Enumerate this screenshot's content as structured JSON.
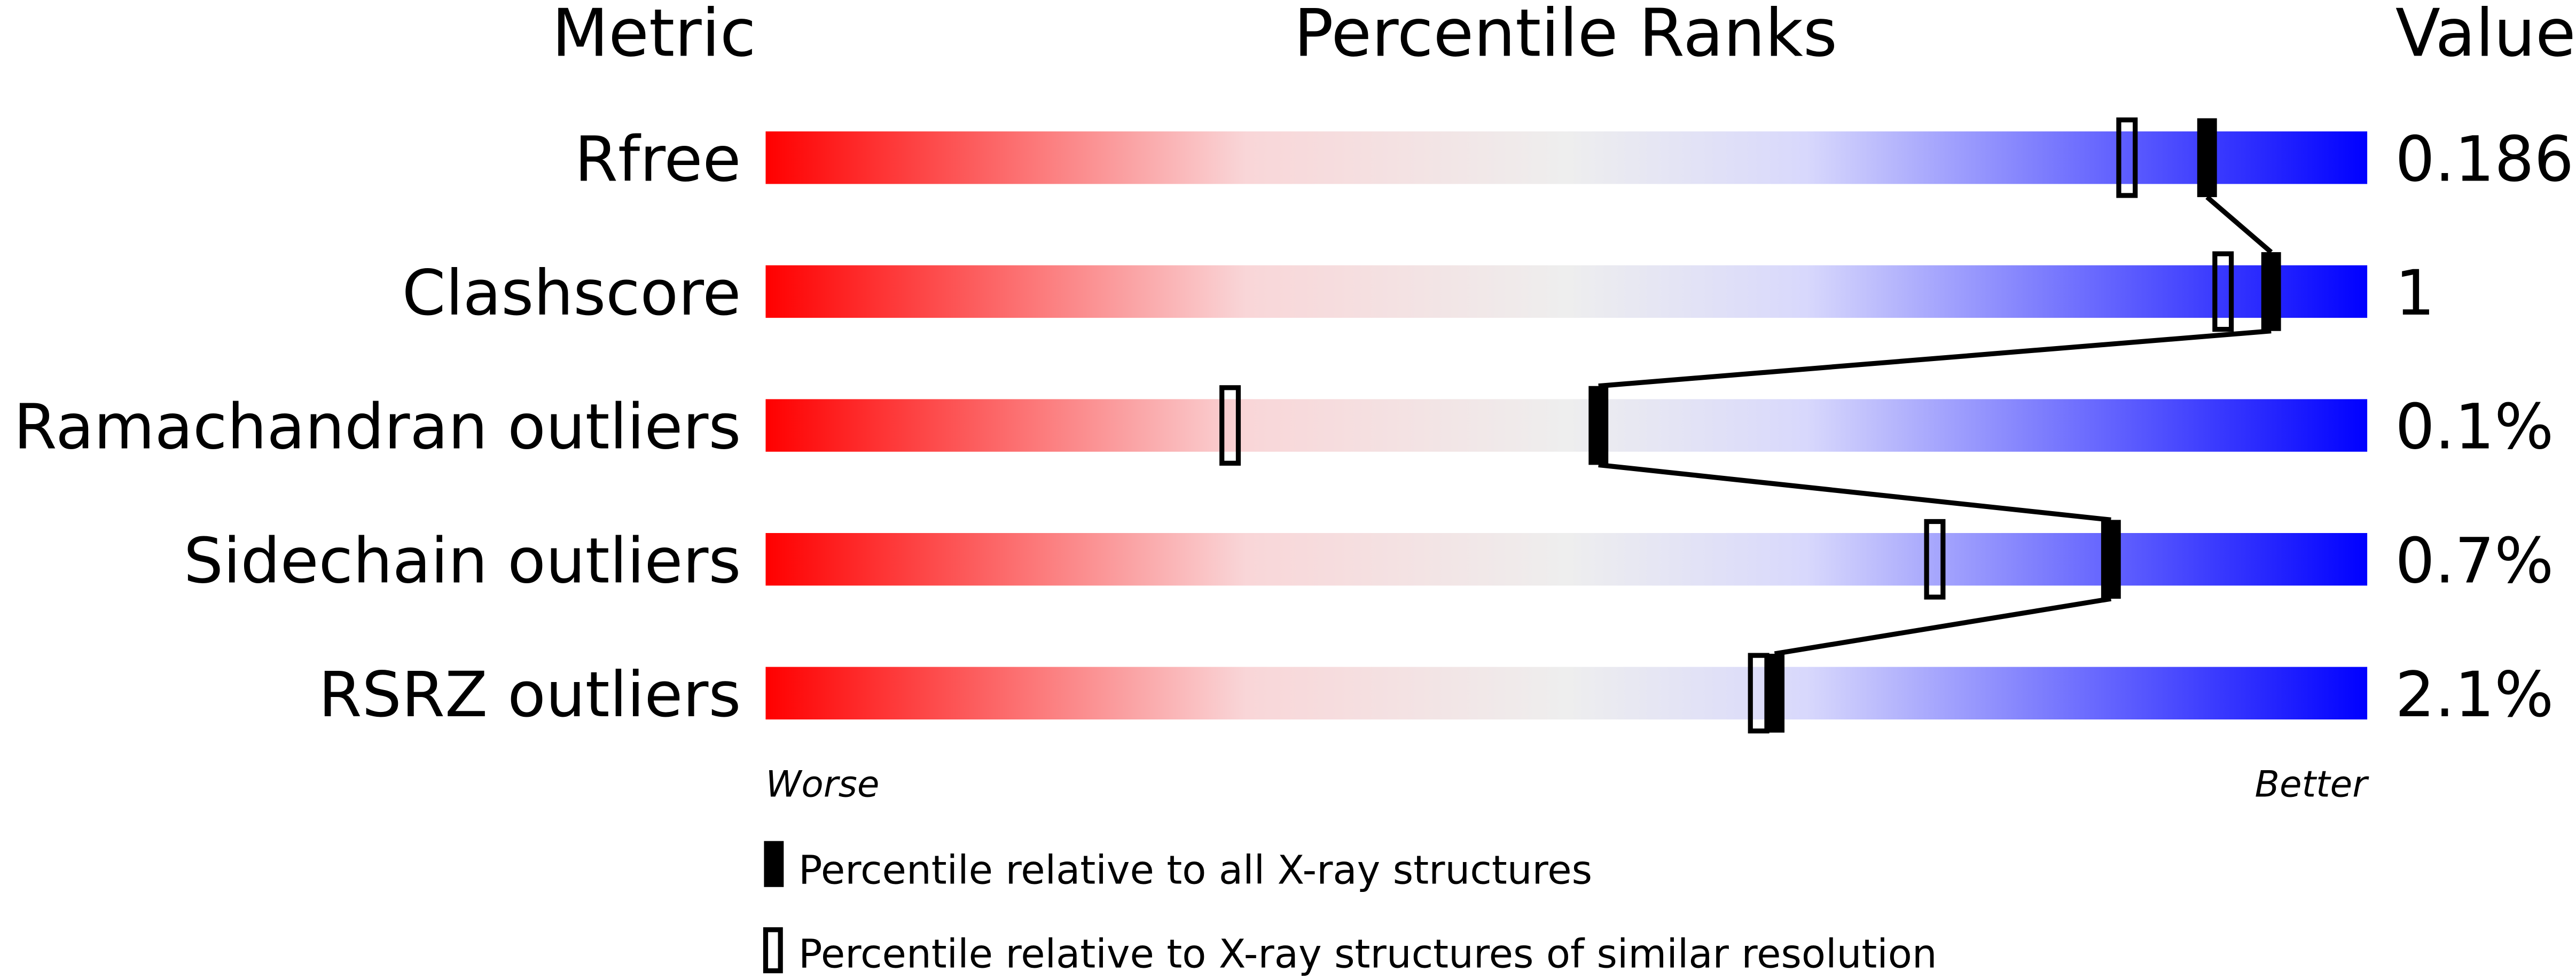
{
  "chart_data": {
    "type": "percentile-slider",
    "headers": {
      "metric": "Metric",
      "ranks": "Percentile Ranks",
      "value": "Value"
    },
    "xlim": [
      0,
      100
    ],
    "axis_labels": {
      "left": "Worse",
      "right": "Better"
    },
    "gradient_colors": [
      "#ff0000",
      "#f9c8cb",
      "#eeeeee",
      "#d8d8fc",
      "#0000ff"
    ],
    "metrics": [
      {
        "name": "Rfree",
        "value": "0.186",
        "percentile_all": 90,
        "percentile_similar": 85
      },
      {
        "name": "Clashscore",
        "value": "1",
        "percentile_all": 94,
        "percentile_similar": 91
      },
      {
        "name": "Ramachandran outliers",
        "value": "0.1%",
        "percentile_all": 52,
        "percentile_similar": 29
      },
      {
        "name": "Sidechain outliers",
        "value": "0.7%",
        "percentile_all": 84,
        "percentile_similar": 73
      },
      {
        "name": "RSRZ outliers",
        "value": "2.1%",
        "percentile_all": 63,
        "percentile_similar": 62
      }
    ],
    "legend": [
      {
        "marker": "filled",
        "label": "Percentile relative to all X-ray structures"
      },
      {
        "marker": "open",
        "label": "Percentile relative to X-ray structures of similar resolution"
      }
    ],
    "legend_position": "bottom"
  }
}
